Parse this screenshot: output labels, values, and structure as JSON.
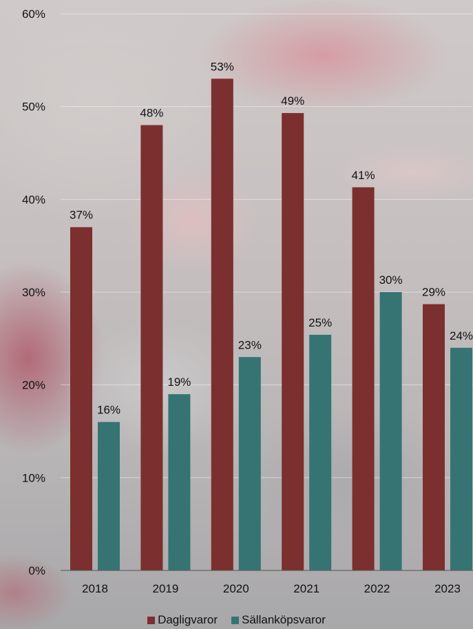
{
  "chart_data": {
    "type": "bar",
    "categories": [
      "2018",
      "2019",
      "2020",
      "2021",
      "2022",
      "2023"
    ],
    "series": [
      {
        "name": "Dagligvaror",
        "values": [
          37,
          48,
          53,
          49.3,
          41.3,
          28.7
        ],
        "labels": [
          "37%",
          "48%",
          "53%",
          "49%",
          "41%",
          "29%"
        ],
        "color": "#7b2f2e"
      },
      {
        "name": "Sällanköpsvaror",
        "values": [
          16,
          19,
          23,
          25.4,
          30,
          24
        ],
        "labels": [
          "16%",
          "19%",
          "23%",
          "25%",
          "30%",
          "24%"
        ],
        "color": "#357473"
      }
    ],
    "ylim": [
      0,
      60
    ],
    "yticks": [
      "0%",
      "10%",
      "20%",
      "30%",
      "40%",
      "50%",
      "60%"
    ],
    "grid": true,
    "legend": "bottom",
    "title": "",
    "xlabel": "",
    "ylabel": ""
  }
}
